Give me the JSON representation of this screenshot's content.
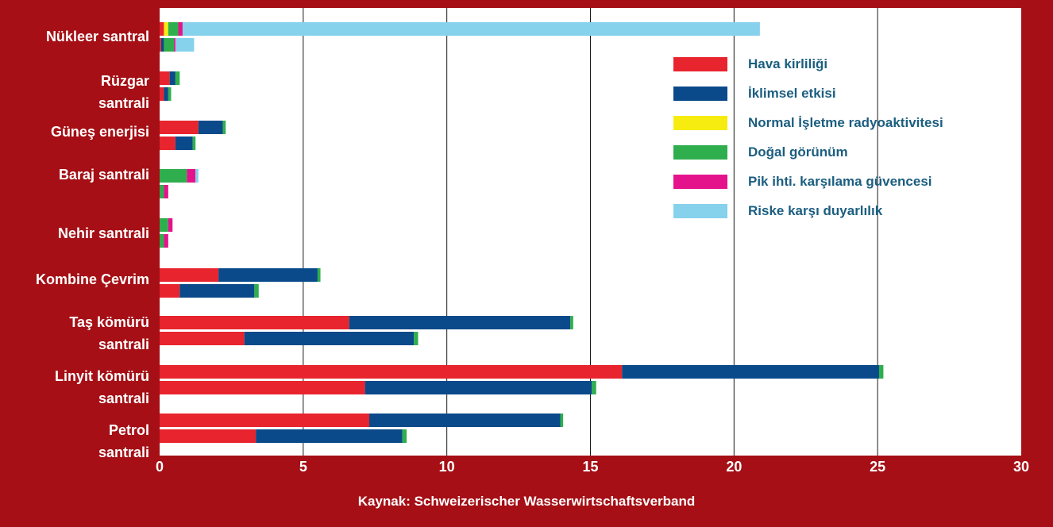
{
  "colors": {
    "frame": "#a50f15",
    "grid": "#1a1a1a",
    "text_light": "#ffffff",
    "legend_text": "#1b5e80"
  },
  "chart_data": {
    "type": "bar",
    "orientation": "horizontal",
    "stacked": true,
    "xlim": [
      0,
      30
    ],
    "xticks": [
      "0",
      "5",
      "10",
      "15",
      "20",
      "25",
      "30"
    ],
    "grid": "vertical",
    "legend_position": "top-right",
    "source": "Kaynak: Schweizerischer Wasserwirtschaftsverband",
    "series": [
      {
        "name": "Hava kirliliği",
        "color": "#e8242e"
      },
      {
        "name": "İklimsel etkisi",
        "color": "#0a4a8a"
      },
      {
        "name": "Normal İşletme radyoaktivitesi",
        "color": "#f6ec10"
      },
      {
        "name": "Doğal görünüm",
        "color": "#2fae4e"
      },
      {
        "name": "Pik ihti. karşılama güvencesi",
        "color": "#e5138b"
      },
      {
        "name": "Riske karşı duyarlılık",
        "color": "#86d1ec"
      }
    ],
    "categories": [
      {
        "label": "Nükleer santral",
        "bars": [
          [
            0.15,
            0,
            0.15,
            0.35,
            0.15,
            20.1
          ],
          [
            0.05,
            0.1,
            0,
            0.35,
            0.05,
            0.65
          ]
        ]
      },
      {
        "label": "Rüzgar\nsantrali",
        "bars": [
          [
            0.35,
            0.2,
            0,
            0.15,
            0,
            0
          ],
          [
            0.15,
            0.15,
            0,
            0.1,
            0,
            0
          ]
        ]
      },
      {
        "label": "Güneş enerjisi",
        "bars": [
          [
            1.35,
            0.85,
            0,
            0.1,
            0,
            0
          ],
          [
            0.55,
            0.6,
            0,
            0.1,
            0,
            0
          ]
        ]
      },
      {
        "label": "Baraj santrali",
        "bars": [
          [
            0,
            0,
            0,
            0.95,
            0.3,
            0.1
          ],
          [
            0,
            0,
            0,
            0.15,
            0.15,
            0
          ]
        ]
      },
      {
        "label": "Nehir santrali",
        "bars": [
          [
            0,
            0,
            0,
            0.3,
            0.15,
            0
          ],
          [
            0,
            0,
            0,
            0.15,
            0.15,
            0
          ]
        ]
      },
      {
        "label": "Kombine Çevrim",
        "bars": [
          [
            2.05,
            3.45,
            0,
            0.1,
            0,
            0
          ],
          [
            0.7,
            2.6,
            0,
            0.15,
            0,
            0
          ]
        ]
      },
      {
        "label": "Taş kömürü\nsantrali",
        "bars": [
          [
            6.6,
            7.7,
            0,
            0.1,
            0,
            0
          ],
          [
            2.95,
            5.9,
            0,
            0.15,
            0,
            0
          ]
        ]
      },
      {
        "label": "Linyit kömürü\nsantrali",
        "bars": [
          [
            16.1,
            8.95,
            0,
            0.15,
            0,
            0
          ],
          [
            7.15,
            7.9,
            0,
            0.15,
            0,
            0
          ]
        ]
      },
      {
        "label": "Petrol\nsantrali",
        "bars": [
          [
            7.3,
            6.65,
            0,
            0.1,
            0,
            0
          ],
          [
            3.35,
            5.1,
            0,
            0.15,
            0,
            0
          ]
        ]
      }
    ]
  }
}
